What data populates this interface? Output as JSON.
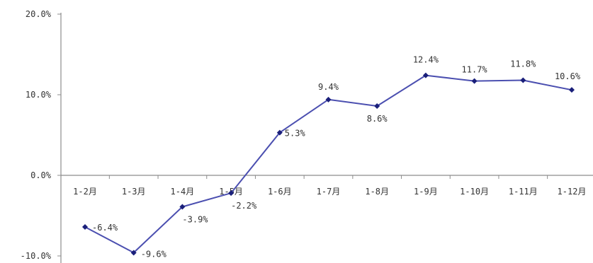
{
  "chart_data": {
    "type": "line",
    "categories": [
      "1-2月",
      "1-3月",
      "1-4月",
      "1-5月",
      "1-6月",
      "1-7月",
      "1-8月",
      "1-9月",
      "1-10月",
      "1-11月",
      "1-12月"
    ],
    "series": [
      {
        "values": [
          -6.4,
          -9.6,
          -3.9,
          -2.2,
          5.3,
          9.4,
          8.6,
          12.4,
          11.7,
          11.8,
          10.6
        ],
        "data_labels": [
          "-6.4%",
          "-9.6%",
          "-3.9%",
          "-2.2%",
          "5.3%",
          "9.4%",
          "8.6%",
          "12.4%",
          "11.7%",
          "11.8%",
          "10.6%"
        ]
      }
    ],
    "y_ticks": [
      {
        "value": 20,
        "label": "20.0%"
      },
      {
        "value": 10,
        "label": "10.0%"
      },
      {
        "value": 0,
        "label": "0.0%"
      },
      {
        "value": -10,
        "label": "-10.0%"
      }
    ],
    "ylim": [
      -10,
      20
    ],
    "grid": false,
    "legend": "none",
    "colors": {
      "line": "#4b4fb0",
      "marker": "#1a1f7a",
      "axis": "#8c8c8c"
    }
  }
}
